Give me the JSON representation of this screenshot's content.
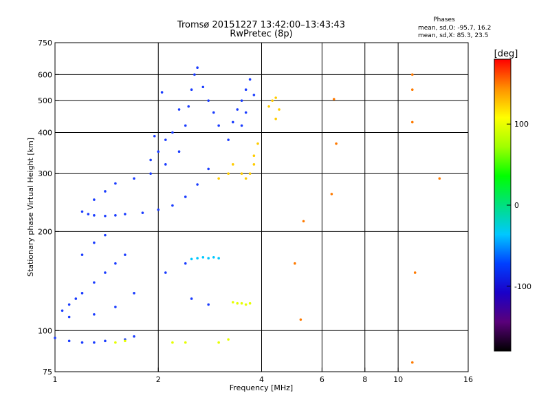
{
  "chart_data": {
    "type": "scatter",
    "title": "Tromsø 20151227 13:42:00–13:43:43",
    "subtitle": "RwPretec (8p)",
    "stats": {
      "heading": "Phases",
      "line_o": "mean, sd,O: -95.7, 16.2",
      "line_x": "mean, sd,X:  85.3, 23.5"
    },
    "xlabel": "Frequency [MHz]",
    "ylabel": "Stationary phase Virtual Height [km]",
    "x_scale": "log",
    "y_scale": "log",
    "xlim": [
      1,
      16
    ],
    "ylim": [
      75,
      750
    ],
    "x_ticks": [
      1,
      2,
      4,
      6,
      8,
      10,
      16
    ],
    "y_ticks": [
      75,
      100,
      200,
      300,
      400,
      500,
      600,
      750
    ],
    "x_gridlines": [
      2,
      4,
      6,
      8,
      10
    ],
    "y_gridlines": [
      100,
      200,
      300,
      400,
      500,
      600
    ],
    "grid": true,
    "colorbar": {
      "label": "[deg]",
      "range": [
        -180,
        180
      ],
      "ticks": [
        100,
        0,
        -100
      ],
      "colors": [
        "#000000",
        "#5a007a",
        "#1a00c8",
        "#0040ff",
        "#00c8ff",
        "#00e080",
        "#00ff00",
        "#a0ff00",
        "#ffff00",
        "#ff9000",
        "#ff0000"
      ]
    },
    "series": [
      {
        "color": "#1a3cff",
        "cluster": "F-region O-mode trace",
        "points": [
          [
            1.2,
            230
          ],
          [
            1.25,
            226
          ],
          [
            1.3,
            224
          ],
          [
            1.4,
            223
          ],
          [
            1.5,
            224
          ],
          [
            1.6,
            226
          ],
          [
            1.8,
            228
          ],
          [
            2.0,
            233
          ],
          [
            2.2,
            240
          ],
          [
            2.4,
            255
          ],
          [
            2.6,
            278
          ],
          [
            2.8,
            310
          ],
          [
            1.3,
            250
          ],
          [
            1.4,
            265
          ],
          [
            1.5,
            280
          ],
          [
            1.7,
            290
          ],
          [
            1.9,
            300
          ],
          [
            2.1,
            320
          ],
          [
            2.3,
            350
          ],
          [
            2.4,
            420
          ],
          [
            2.45,
            480
          ],
          [
            2.5,
            540
          ],
          [
            2.55,
            600
          ],
          [
            2.6,
            630
          ],
          [
            2.3,
            470
          ],
          [
            2.2,
            400
          ],
          [
            2.1,
            380
          ],
          [
            2.0,
            350
          ],
          [
            1.9,
            330
          ],
          [
            2.7,
            550
          ],
          [
            2.8,
            500
          ],
          [
            2.9,
            460
          ],
          [
            3.0,
            420
          ],
          [
            3.2,
            380
          ],
          [
            3.3,
            430
          ],
          [
            3.4,
            470
          ],
          [
            3.5,
            500
          ],
          [
            3.6,
            540
          ],
          [
            3.7,
            580
          ],
          [
            3.8,
            520
          ],
          [
            3.6,
            460
          ],
          [
            3.5,
            420
          ],
          [
            2.05,
            530
          ],
          [
            1.95,
            390
          ]
        ]
      },
      {
        "color": "#ffcc00",
        "cluster": "F-region X-mode trace",
        "points": [
          [
            3.5,
            300
          ],
          [
            3.6,
            290
          ],
          [
            3.7,
            300
          ],
          [
            3.8,
            320
          ],
          [
            4.2,
            480
          ],
          [
            4.3,
            500
          ],
          [
            4.4,
            510
          ],
          [
            4.5,
            470
          ],
          [
            4.4,
            440
          ],
          [
            3.9,
            370
          ],
          [
            3.8,
            340
          ],
          [
            3.0,
            290
          ],
          [
            3.2,
            300
          ],
          [
            3.3,
            320
          ]
        ]
      },
      {
        "color": "#1a3cff",
        "cluster": "E-region echoes",
        "points": [
          [
            1.05,
            115
          ],
          [
            1.1,
            120
          ],
          [
            1.15,
            125
          ],
          [
            1.2,
            130
          ],
          [
            1.3,
            140
          ],
          [
            1.4,
            150
          ],
          [
            1.5,
            160
          ],
          [
            1.6,
            170
          ],
          [
            1.7,
            130
          ],
          [
            1.5,
            118
          ],
          [
            1.3,
            112
          ],
          [
            1.1,
            110
          ],
          [
            1.0,
            95
          ],
          [
            1.1,
            93
          ],
          [
            1.2,
            92
          ],
          [
            1.3,
            92
          ],
          [
            1.4,
            93
          ],
          [
            1.6,
            94
          ],
          [
            1.7,
            96
          ],
          [
            1.2,
            170
          ],
          [
            1.3,
            185
          ],
          [
            1.4,
            195
          ],
          [
            2.1,
            150
          ],
          [
            2.4,
            160
          ],
          [
            2.5,
            125
          ],
          [
            2.8,
            120
          ]
        ]
      },
      {
        "color": "#00c8ff",
        "cluster": "E-region cyan trace",
        "points": [
          [
            2.5,
            165
          ],
          [
            2.6,
            166
          ],
          [
            2.7,
            167
          ],
          [
            2.8,
            166
          ],
          [
            2.9,
            167
          ],
          [
            3.0,
            166
          ]
        ]
      },
      {
        "color": "#e6ff00",
        "cluster": "E-region yellow trace",
        "points": [
          [
            3.3,
            122
          ],
          [
            3.4,
            121
          ],
          [
            3.5,
            121
          ],
          [
            3.6,
            120
          ],
          [
            3.7,
            121
          ],
          [
            1.6,
            93
          ],
          [
            1.5,
            92
          ],
          [
            2.2,
            92
          ],
          [
            2.4,
            92
          ],
          [
            3.0,
            92
          ],
          [
            3.2,
            94
          ]
        ]
      },
      {
        "color": "#ff7a00",
        "cluster": "scattered high-frequency echoes",
        "points": [
          [
            6.5,
            505
          ],
          [
            6.6,
            370
          ],
          [
            6.4,
            260
          ],
          [
            5.3,
            215
          ],
          [
            11.0,
            540
          ],
          [
            11.0,
            430
          ],
          [
            11.0,
            600
          ],
          [
            13.2,
            290
          ],
          [
            11.0,
            80
          ],
          [
            5.0,
            160
          ],
          [
            5.2,
            108
          ],
          [
            11.2,
            150
          ]
        ]
      }
    ]
  }
}
